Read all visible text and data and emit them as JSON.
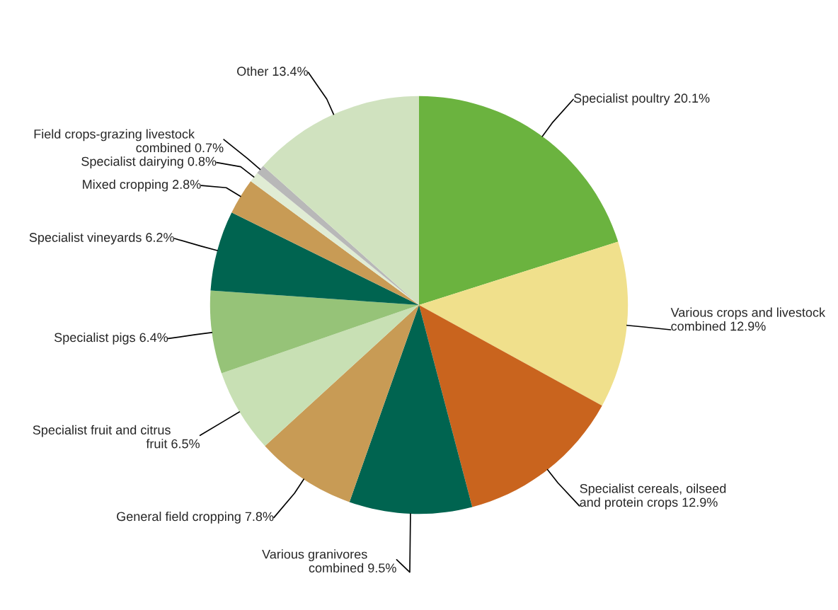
{
  "chart_data": {
    "type": "pie",
    "categories": [
      "Specialist poultry",
      "Various crops and livestock\ncombined",
      "Specialist cereals, oilseed\nand protein crops",
      "Various granivores\ncombined",
      "General field cropping",
      "Specialist fruit and citrus\nfruit",
      "Specialist pigs",
      "Specialist vineyards",
      "Mixed cropping",
      "Specialist dairying",
      "Field crops-grazing livestock\ncombined",
      "Other"
    ],
    "values": [
      20.1,
      12.9,
      12.9,
      9.5,
      7.8,
      6.5,
      6.4,
      6.2,
      2.8,
      0.8,
      0.7,
      13.4
    ],
    "colors": [
      "#6bb33f",
      "#f0e08c",
      "#c9641e",
      "#006450",
      "#c89b55",
      "#c8e0b4",
      "#96c378",
      "#006450",
      "#c89b55",
      "#e0ecd4",
      "#b8b8b8",
      "#d0e2bf"
    ],
    "value_labels": [
      "20.1%",
      "12.9%",
      "12.9%",
      "9.5%",
      "7.8%",
      "6.5%",
      "6.4%",
      "6.2%",
      "2.8%",
      "0.8%",
      "0.7%",
      "13.4%"
    ]
  }
}
